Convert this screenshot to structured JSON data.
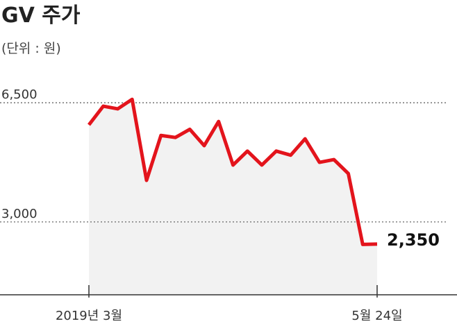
{
  "chart_data": {
    "type": "line",
    "title": "GV 주가",
    "subtitle": "(단위 : 원)",
    "categories": [
      "2019년 3월",
      null,
      null,
      null,
      null,
      null,
      null,
      null,
      null,
      null,
      null,
      null,
      null,
      null,
      null,
      null,
      null,
      null,
      null,
      null,
      "5월 24일"
    ],
    "values": [
      5850,
      6400,
      6320,
      6600,
      4220,
      5540,
      5480,
      5720,
      5240,
      5950,
      4670,
      5080,
      4670,
      5080,
      4960,
      5440,
      4750,
      4830,
      4420,
      2340,
      2350
    ],
    "value_labels": [
      null,
      null,
      null,
      null,
      null,
      null,
      null,
      null,
      null,
      null,
      null,
      null,
      null,
      null,
      null,
      null,
      null,
      null,
      null,
      null,
      "2,350"
    ],
    "color": "#e3141c",
    "area_color": "#f2f2f2",
    "ylim": [
      860,
      7480
    ],
    "yticks": [
      {
        "value": 3000,
        "label": "3,000"
      },
      {
        "value": 6500,
        "label": "6,500"
      }
    ],
    "grid": true
  }
}
